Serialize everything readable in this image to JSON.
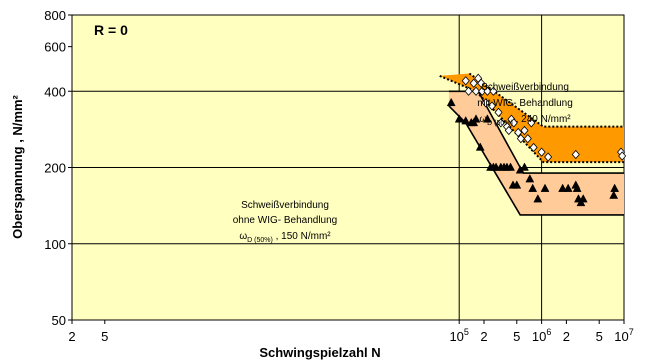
{
  "chart_data": {
    "type": "scatter",
    "x_scale": "log",
    "y_scale": "log",
    "xlim": [
      2,
      10000000
    ],
    "ylim": [
      50,
      800
    ],
    "xlabel": "Schwingspielzahl N",
    "ylabel": "Oberspannung , N/mm²",
    "annotation_r": "R = 0",
    "grid": false,
    "x_tick_labels": [
      {
        "x": 2,
        "text": "2"
      },
      {
        "x": 5,
        "text": "5"
      },
      {
        "x": 100000,
        "base": "10",
        "exp": "5"
      },
      {
        "x": 200000,
        "text": "2"
      },
      {
        "x": 500000,
        "text": "5"
      },
      {
        "x": 1000000,
        "base": "10",
        "exp": "6"
      },
      {
        "x": 2000000,
        "text": "2"
      },
      {
        "x": 5000000,
        "text": "5"
      },
      {
        "x": 10000000,
        "base": "10",
        "exp": "7"
      }
    ],
    "y_tick_labels": [
      {
        "y": 50,
        "text": "50"
      },
      {
        "y": 100,
        "text": "100"
      },
      {
        "y": 200,
        "text": "200"
      },
      {
        "y": 400,
        "text": "400"
      },
      {
        "y": 600,
        "text": "600"
      },
      {
        "y": 800,
        "text": "800"
      }
    ],
    "major_gridlines_x": [
      100000,
      1000000
    ],
    "major_gridlines_y": [
      100,
      200,
      400
    ],
    "colors": {
      "plot_bg": "#FFFFC0",
      "band_with_tig": "#FF9900",
      "band_without_tig": "#FFCC99"
    },
    "series": [
      {
        "label_lines": [
          "Schweißverbindung",
          "mit WIG- Behandlung"
        ],
        "omega_label": {
          "symbol": "ω",
          "sub": "D (50%)",
          "value": " , 240 N/mm²"
        },
        "marker": "diamond-open",
        "band": {
          "upper": [
            [
              133000,
              470
            ],
            [
              1050000,
              290
            ],
            [
              10000000,
              290
            ]
          ],
          "lower": [
            [
              58000,
              460
            ],
            [
              160000,
              400
            ],
            [
              1050000,
              210
            ],
            [
              10000000,
              210
            ]
          ]
        },
        "points": [
          [
            120000,
            440
          ],
          [
            130000,
            400
          ],
          [
            150000,
            430
          ],
          [
            170000,
            450
          ],
          [
            160000,
            400
          ],
          [
            185000,
            430
          ],
          [
            190000,
            400
          ],
          [
            220000,
            400
          ],
          [
            210000,
            360
          ],
          [
            250000,
            350
          ],
          [
            260000,
            400
          ],
          [
            300000,
            330
          ],
          [
            320000,
            300
          ],
          [
            380000,
            290
          ],
          [
            400000,
            280
          ],
          [
            430000,
            310
          ],
          [
            460000,
            300
          ],
          [
            520000,
            275
          ],
          [
            560000,
            260
          ],
          [
            620000,
            280
          ],
          [
            680000,
            260
          ],
          [
            750000,
            300
          ],
          [
            800000,
            240
          ],
          [
            1000000,
            230
          ],
          [
            1200000,
            220
          ],
          [
            2600000,
            225
          ],
          [
            9200000,
            230
          ],
          [
            9500000,
            222
          ]
        ]
      },
      {
        "label_lines": [
          "Schweißverbindung",
          "ohne WIG- Behandlung"
        ],
        "omega_label": {
          "symbol": "ω",
          "sub": "D (50%)",
          "value": " , 150 N/mm²"
        },
        "marker": "triangle-filled",
        "band": {
          "upper": [
            [
              75000,
              400
            ],
            [
              170000,
              400
            ],
            [
              600000,
              190
            ],
            [
              10000000,
              190
            ]
          ],
          "lower": [
            [
              75000,
              350
            ],
            [
              120000,
              300
            ],
            [
              550000,
              130
            ],
            [
              10000000,
              130
            ]
          ]
        },
        "points": [
          [
            80000,
            360
          ],
          [
            100000,
            310
          ],
          [
            120000,
            305
          ],
          [
            140000,
            300
          ],
          [
            150000,
            300
          ],
          [
            160000,
            310
          ],
          [
            180000,
            240
          ],
          [
            220000,
            310
          ],
          [
            240000,
            200
          ],
          [
            260000,
            200
          ],
          [
            280000,
            200
          ],
          [
            320000,
            200
          ],
          [
            350000,
            200
          ],
          [
            380000,
            200
          ],
          [
            420000,
            200
          ],
          [
            450000,
            170
          ],
          [
            500000,
            170
          ],
          [
            550000,
            195
          ],
          [
            620000,
            200
          ],
          [
            720000,
            180
          ],
          [
            780000,
            165
          ],
          [
            900000,
            150
          ],
          [
            1100000,
            165
          ],
          [
            1800000,
            165
          ],
          [
            2100000,
            165
          ],
          [
            2600000,
            170
          ],
          [
            2700000,
            165
          ],
          [
            2800000,
            150
          ],
          [
            3000000,
            145
          ],
          [
            3200000,
            150
          ],
          [
            7500000,
            155
          ],
          [
            7700000,
            165
          ]
        ]
      }
    ]
  }
}
